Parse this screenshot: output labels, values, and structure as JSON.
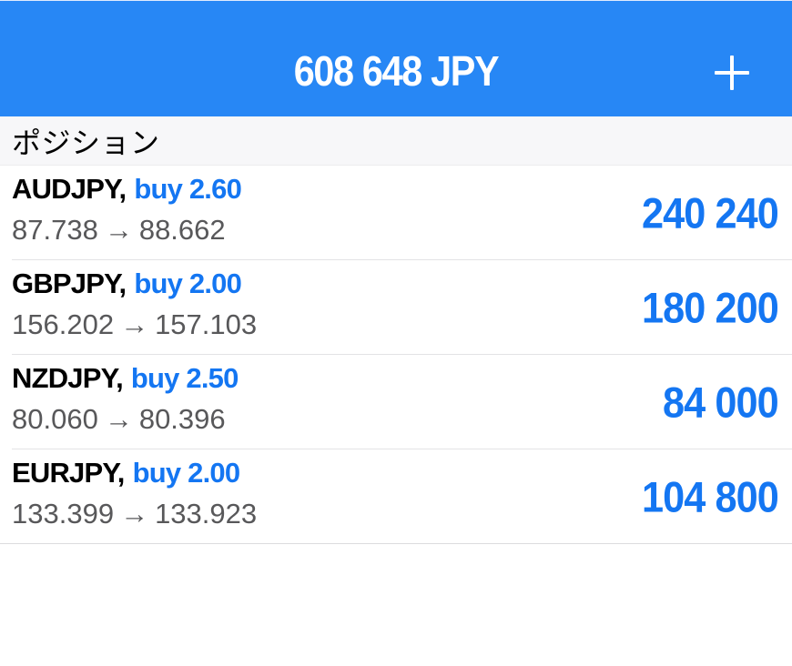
{
  "header": {
    "title": "608 648 JPY"
  },
  "section_header": {
    "title": "ポジション"
  },
  "icons": {
    "add": "plus-icon",
    "arrow_right": "→"
  },
  "positions": [
    {
      "symbol": "AUDJPY,",
      "side": "buy 2.60",
      "open": "87.738",
      "current": "88.662",
      "profit": "240 240"
    },
    {
      "symbol": "GBPJPY,",
      "side": "buy 2.00",
      "open": "156.202",
      "current": "157.103",
      "profit": "180 200"
    },
    {
      "symbol": "NZDJPY,",
      "side": "buy 2.50",
      "open": "80.060",
      "current": "80.396",
      "profit": "84 000"
    },
    {
      "symbol": "EURJPY,",
      "side": "buy 2.00",
      "open": "133.399",
      "current": "133.923",
      "profit": "104 800"
    }
  ],
  "colors": {
    "header_bg": "#2787F5",
    "accent_blue": "#1476F2",
    "price_gray": "#58585A",
    "section_bg": "#F7F7F9",
    "divider": "#E3E3E5",
    "title_text": "#FFFFFF"
  }
}
